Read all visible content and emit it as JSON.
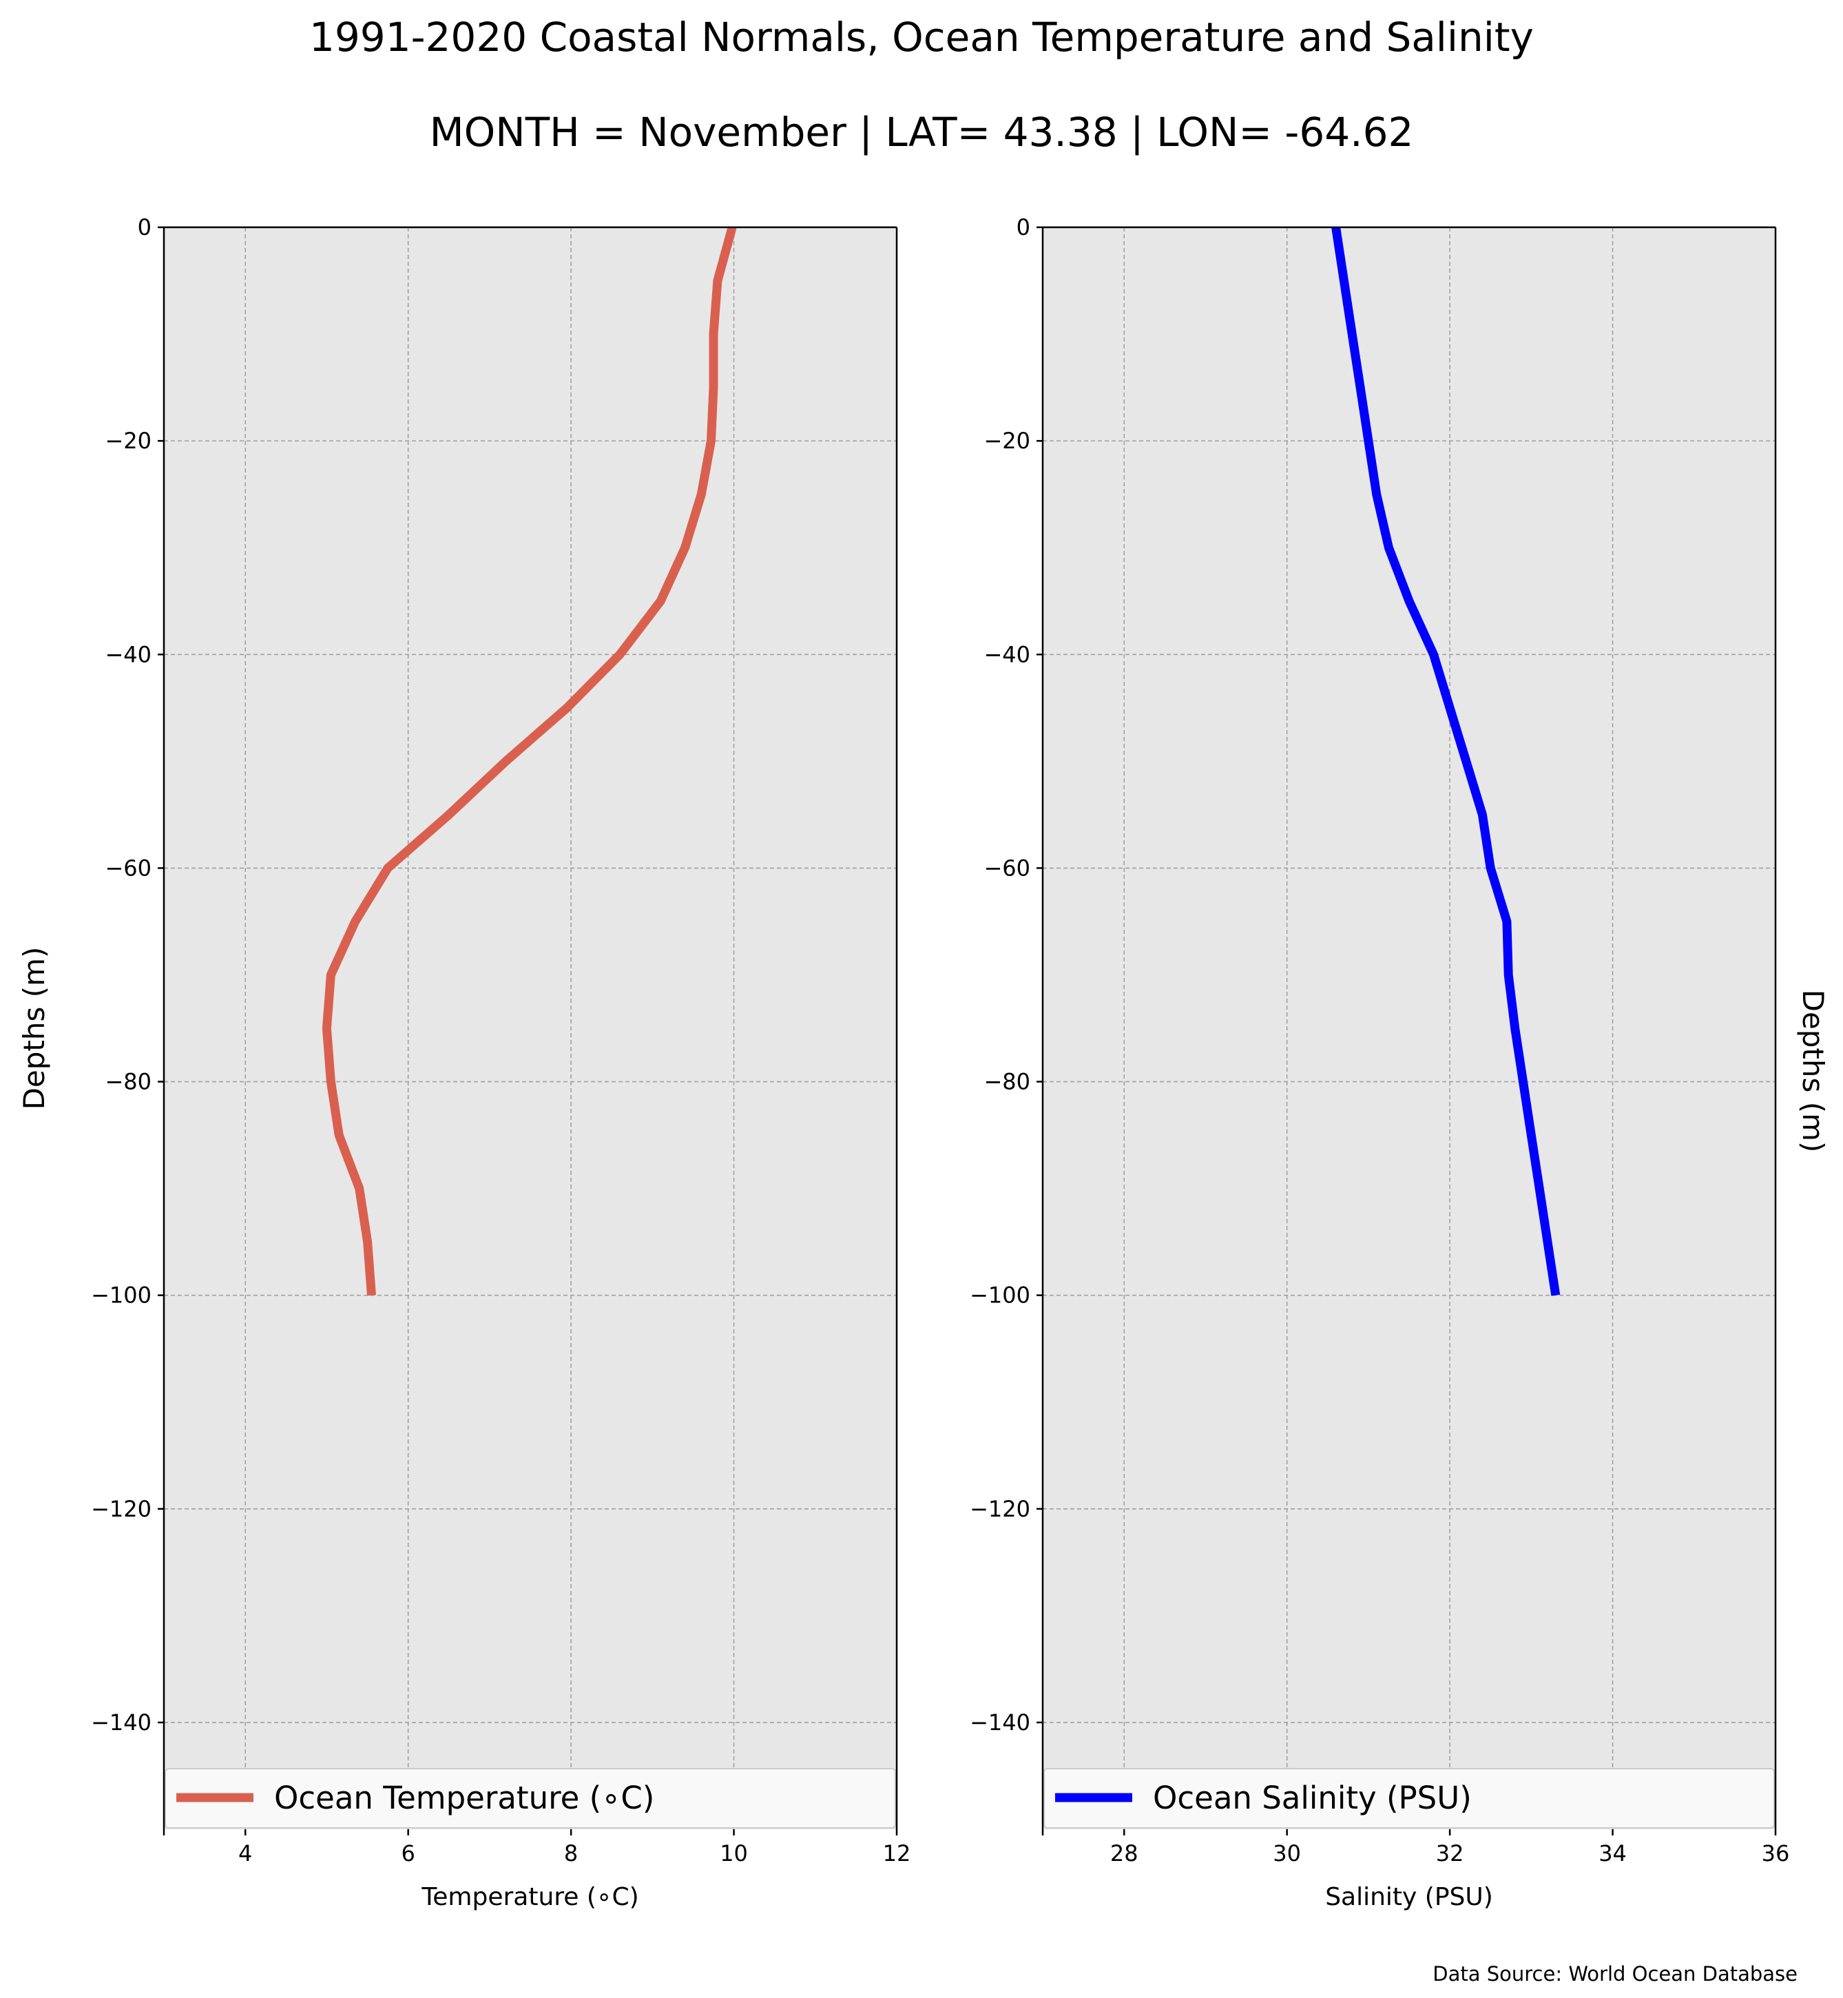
{
  "figure": {
    "title": "1991-2020 Coastal Normals, Ocean Temperature and Salinity",
    "subtitle": "MONTH = November | LAT= 43.38 | LON= -64.62",
    "source_note": "Data Source: World Ocean Database",
    "right_ylabel": "Depths (m)"
  },
  "chart_data": [
    {
      "type": "line",
      "xlabel": "Temperature ($^\\circ$C)",
      "xlabel_display": "Temperature (∘C)",
      "ylabel": "Depths (m)",
      "xlim": [
        3,
        12
      ],
      "ylim": [
        -150,
        0
      ],
      "xticks": [
        4,
        6,
        8,
        10,
        12
      ],
      "yticks": [
        0,
        -20,
        -40,
        -60,
        -80,
        -100,
        -120,
        -140
      ],
      "grid": true,
      "legend_placement": "bottom",
      "series": [
        {
          "name": "Ocean Temperature (∘C)",
          "color": "#d9604f",
          "x": [
            9.98,
            9.8,
            9.75,
            9.75,
            9.72,
            9.6,
            9.4,
            9.1,
            8.6,
            7.95,
            7.2,
            6.5,
            5.75,
            5.35,
            5.05,
            5.0,
            5.05,
            5.15,
            5.4,
            5.5,
            5.55
          ],
          "y": [
            0,
            -5,
            -10,
            -15,
            -20,
            -25,
            -30,
            -35,
            -40,
            -45,
            -50,
            -55,
            -60,
            -65,
            -70,
            -75,
            -80,
            -85,
            -90,
            -95,
            -100
          ]
        }
      ]
    },
    {
      "type": "line",
      "xlabel": "Salinity (PSU)",
      "ylabel": "",
      "xlim": [
        27,
        36
      ],
      "ylim": [
        -150,
        0
      ],
      "xticks": [
        28,
        30,
        32,
        34,
        36
      ],
      "yticks": [
        0,
        -20,
        -40,
        -60,
        -80,
        -100,
        -120,
        -140
      ],
      "grid": true,
      "legend_placement": "bottom",
      "series": [
        {
          "name": "Ocean Salinity (PSU)",
          "color": "#0000ff",
          "x": [
            30.6,
            30.7,
            30.8,
            30.9,
            31.0,
            31.1,
            31.25,
            31.5,
            31.8,
            32.0,
            32.2,
            32.4,
            32.5,
            32.7,
            32.72,
            32.8,
            32.9,
            33.0,
            33.1,
            33.2,
            33.3
          ],
          "y": [
            0,
            -5,
            -10,
            -15,
            -20,
            -25,
            -30,
            -35,
            -40,
            -45,
            -50,
            -55,
            -60,
            -65,
            -70,
            -75,
            -80,
            -85,
            -90,
            -95,
            -100
          ]
        }
      ]
    }
  ]
}
